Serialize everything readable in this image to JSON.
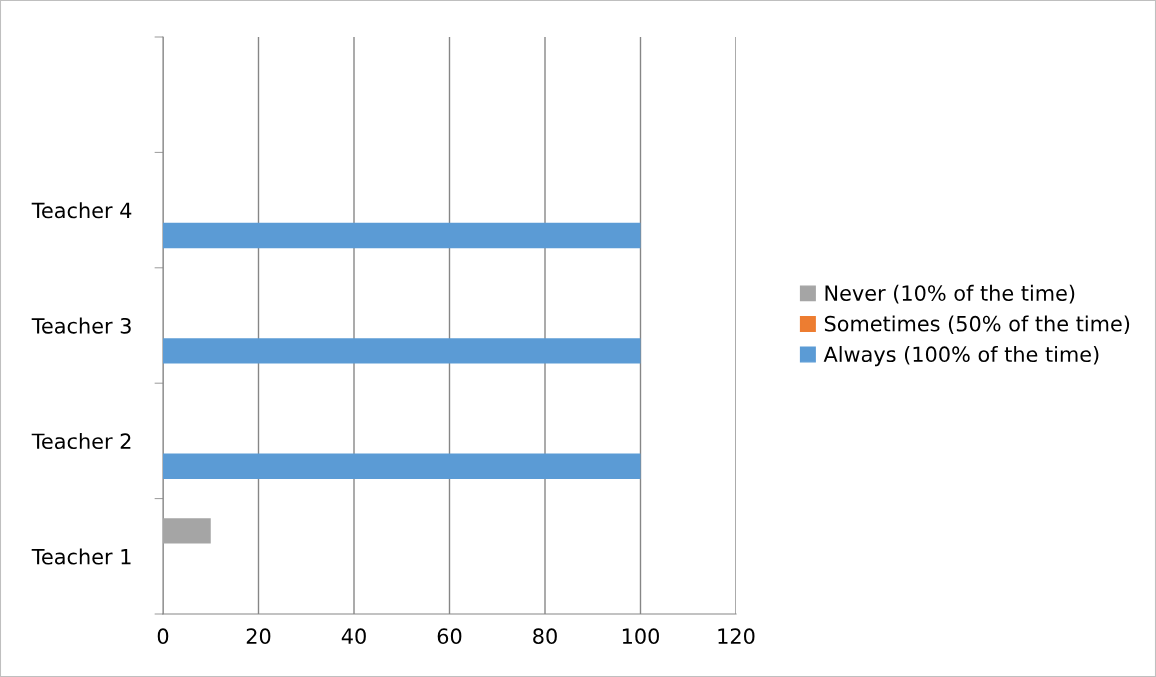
{
  "chart_data": {
    "type": "bar",
    "orientation": "horizontal",
    "categories": [
      null,
      "Teacher 4",
      "Teacher 3",
      "Teacher 2",
      "Teacher 1"
    ],
    "series": [
      {
        "name": "Never (10% of the time)",
        "color": "#a5a5a5",
        "values": [
          null,
          null,
          null,
          null,
          10
        ]
      },
      {
        "name": "Sometimes (50% of the time)",
        "color": "#ed7d31",
        "values": [
          null,
          null,
          null,
          null,
          null
        ]
      },
      {
        "name": "Always (100% of the time)",
        "color": "#5b9bd5",
        "values": [
          null,
          100,
          100,
          100,
          null
        ]
      }
    ],
    "xlim": [
      0,
      120
    ],
    "xticks": [
      0,
      20,
      40,
      60,
      80,
      100,
      120
    ],
    "grid": "x",
    "legend": "right"
  }
}
